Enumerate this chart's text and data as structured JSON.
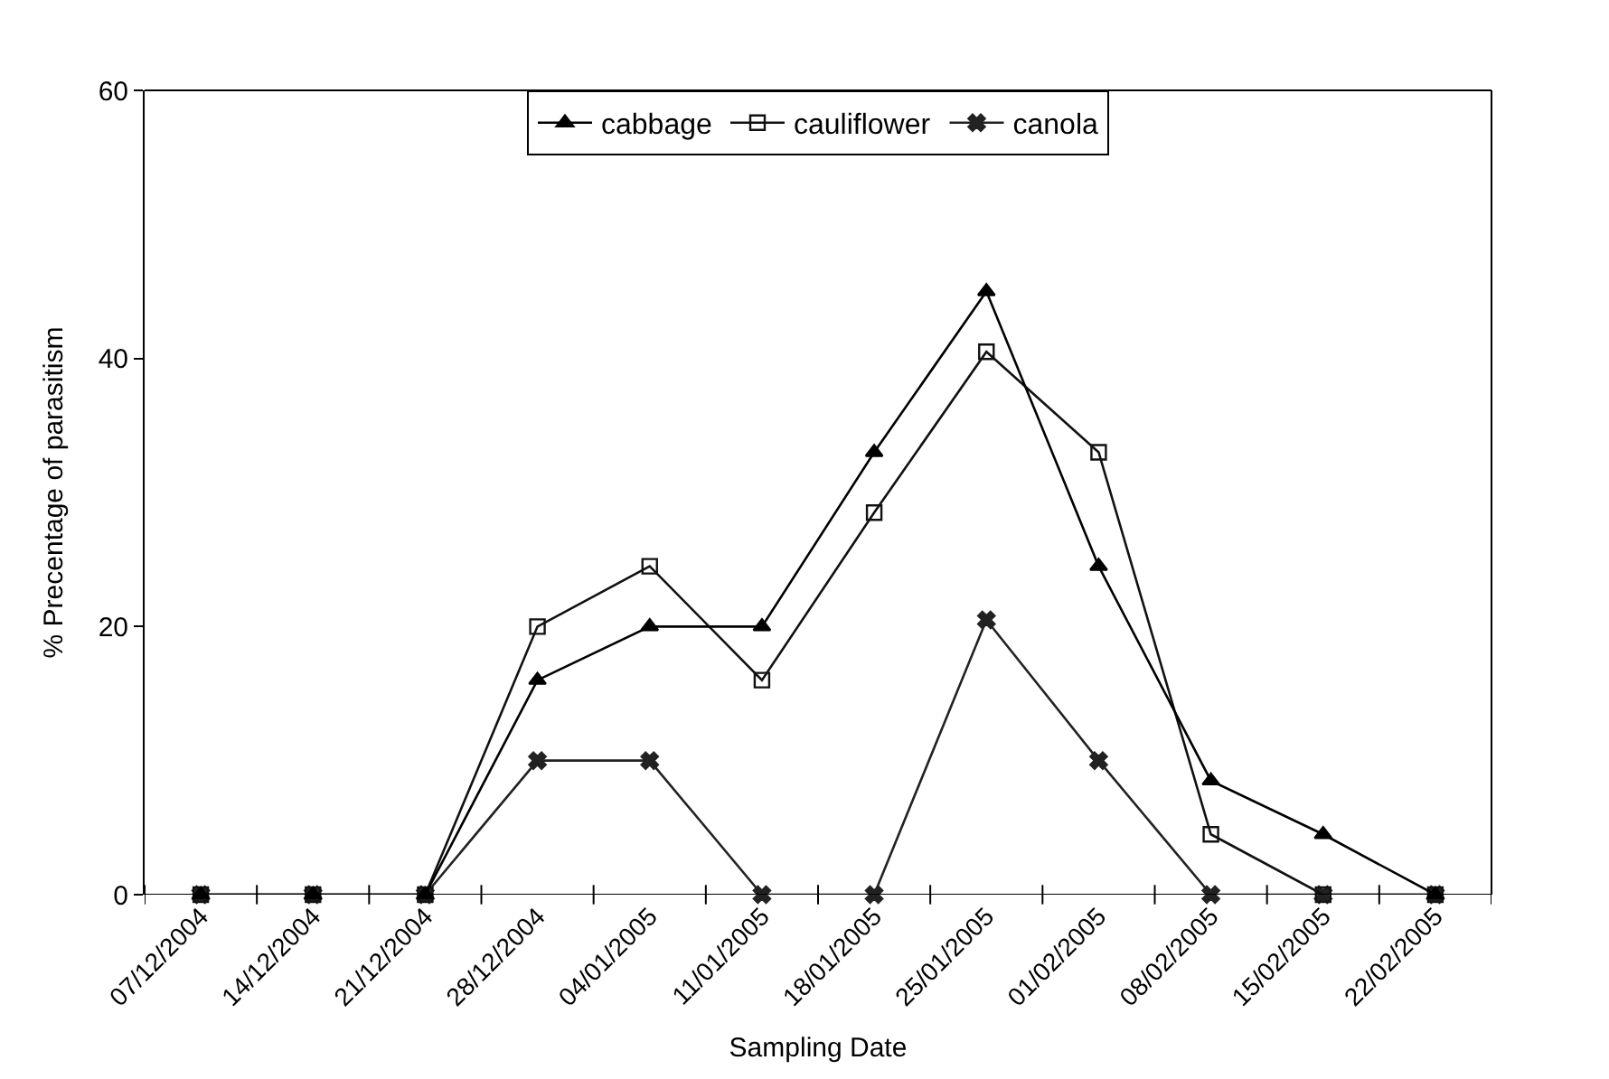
{
  "chart_data": {
    "type": "line",
    "xlabel": "Sampling Date",
    "ylabel": "% Precentage of parasitism",
    "categories": [
      "07/12/2004",
      "14/12/2004",
      "21/12/2004",
      "28/12/2004",
      "04/01/2005",
      "11/01/2005",
      "18/01/2005",
      "25/01/2005",
      "01/02/2005",
      "08/02/2005",
      "15/02/2005",
      "22/02/2005"
    ],
    "series": [
      {
        "name": "cabbage",
        "color": "#000000",
        "marker": "triangle",
        "values": [
          0,
          0,
          0,
          16,
          20,
          20,
          33,
          45,
          24.5,
          8.5,
          4.5,
          0
        ]
      },
      {
        "name": "cauliflower",
        "color": "#111111",
        "marker": "square",
        "values": [
          0,
          0,
          0,
          20,
          24.5,
          16,
          28.5,
          40.5,
          33,
          4.5,
          0,
          0
        ]
      },
      {
        "name": "canola",
        "color": "#222222",
        "marker": "cross",
        "values": [
          0,
          0,
          0,
          10,
          10,
          0,
          0,
          20.5,
          10,
          0,
          0,
          0
        ]
      }
    ],
    "ylim": [
      0,
      60
    ],
    "yticks": [
      0,
      20,
      40,
      60
    ],
    "legend": "top",
    "line_style": "solid"
  }
}
